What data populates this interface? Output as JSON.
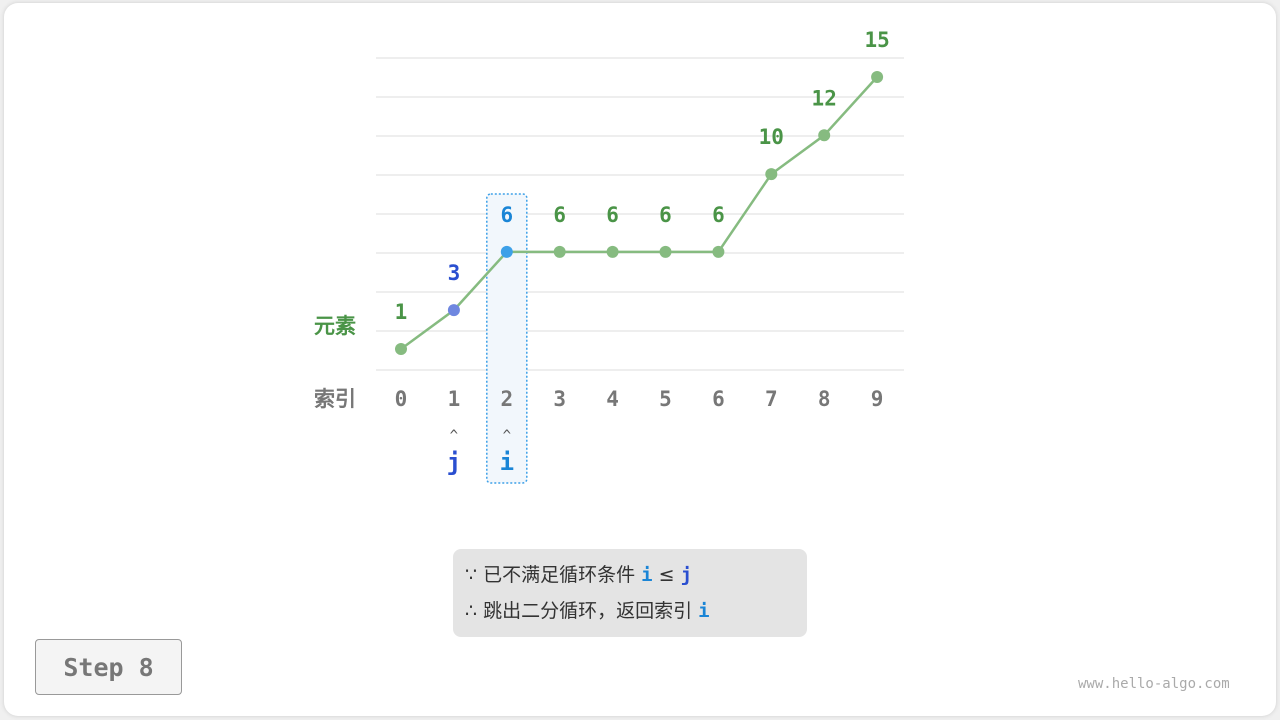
{
  "labels": {
    "element": "元素",
    "index": "索引"
  },
  "array": [
    1,
    3,
    6,
    6,
    6,
    6,
    6,
    10,
    12,
    15
  ],
  "pointers": {
    "j": {
      "label": "j",
      "index": 1,
      "color": "#2a4fd0",
      "point_color": "#6f87e0"
    },
    "i": {
      "label": "i",
      "index": 2,
      "color": "#1a85d6",
      "point_color": "#3da0e8"
    }
  },
  "arrow": "^",
  "colors": {
    "line": "#86bb80",
    "value": "#4a9447",
    "index": "#777777",
    "highlight_border": "#3da0e8",
    "highlight_fill": "#f2f7fc"
  },
  "note": {
    "line1_prefix": "∵  已不满足循环条件 ",
    "line1_i": "i",
    "line1_op": " ≤ ",
    "line1_j": "j",
    "line2_prefix": "∴  跳出二分循环，返回索引 ",
    "line2_i": "i"
  },
  "step": "Step 8",
  "watermark": "www.hello-algo.com"
}
